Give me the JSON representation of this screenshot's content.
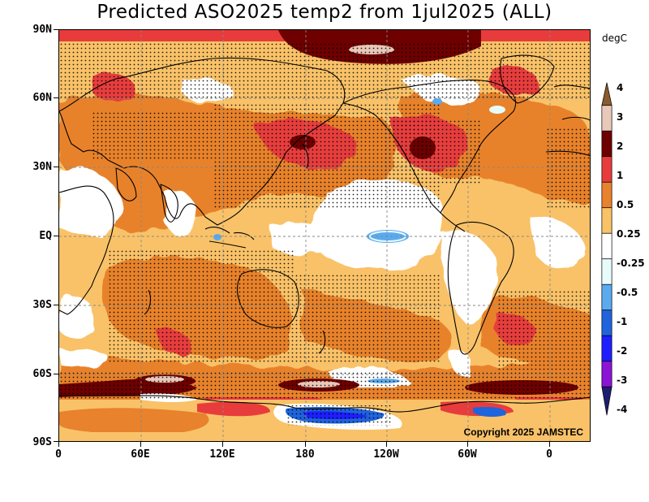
{
  "title": "Predicted ASO2025 temp2 from 1jul2025 (ALL)",
  "copyright": "Copyright 2025 JAMSTEC",
  "lat_labels": [
    "90N",
    "60N",
    "30N",
    "EQ",
    "30S",
    "60S",
    "90S"
  ],
  "lon_labels": [
    "0",
    "60E",
    "120E",
    "180",
    "120W",
    "60W",
    "0"
  ],
  "colorbar": {
    "unit": "degC",
    "labels": [
      "4",
      "3",
      "2",
      "1",
      "0.5",
      "0.25",
      "-0.25",
      "-0.5",
      "-1",
      "-2",
      "-3",
      "-4"
    ],
    "colors": [
      "#8c5a2e",
      "#e8c8b8",
      "#6e0000",
      "#e83c3c",
      "#e8822c",
      "#f9c268",
      "#ffffff",
      "#e8fbfb",
      "#5aaaf0",
      "#1e64dc",
      "#1e1eff",
      "#8c14d4",
      "#1e1e6e"
    ]
  },
  "map_colors": {
    "ocean_base": "#f9c268",
    "warm": "#e8822c",
    "hot": "#e83c3c",
    "very_hot": "#6e0000",
    "extreme": "#e8c8b8",
    "neutral": "#ffffff",
    "cool": "#e8fbfb",
    "cold": "#5aaaf0",
    "colder": "#1e64dc"
  }
}
